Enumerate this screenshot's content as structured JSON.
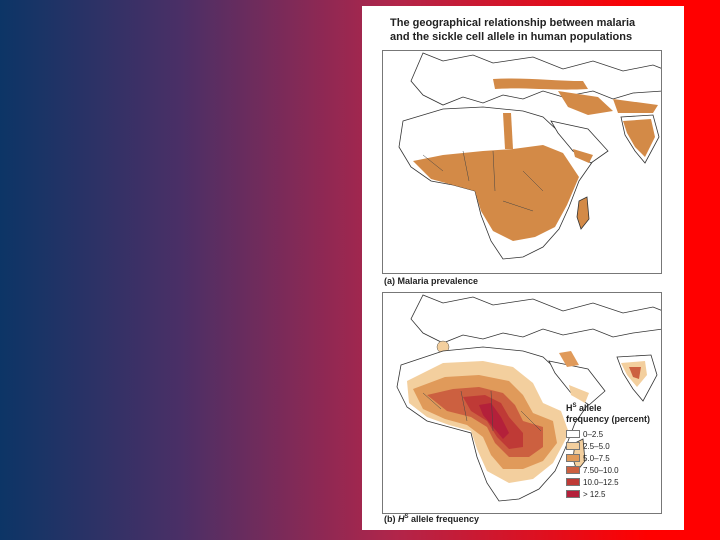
{
  "figure": {
    "title": "The geographical relationship between malaria\nand the sickle cell allele in human populations"
  },
  "panel_a": {
    "caption": "(a) Malaria prevalence",
    "prevalence_color": "#d38a47"
  },
  "panel_b": {
    "caption_prefix": "(b) ",
    "caption_h": "H",
    "caption_sup": "S",
    "caption_suffix": " allele frequency",
    "legend": {
      "title_h": "H",
      "title_sup": "S",
      "title_line1_suffix": " allele",
      "title_line2": "frequency (percent)",
      "items": [
        {
          "label": "0–2.5",
          "color": "#ffffff"
        },
        {
          "label": "2.5–5.0",
          "color": "#f3cf9e"
        },
        {
          "label": "5.0–7.5",
          "color": "#e09a5a"
        },
        {
          "label": "7.50–10.0",
          "color": "#cc6040"
        },
        {
          "label": "10.0–12.5",
          "color": "#bf3a36"
        },
        {
          "label": "> 12.5",
          "color": "#b4203a"
        }
      ]
    }
  }
}
